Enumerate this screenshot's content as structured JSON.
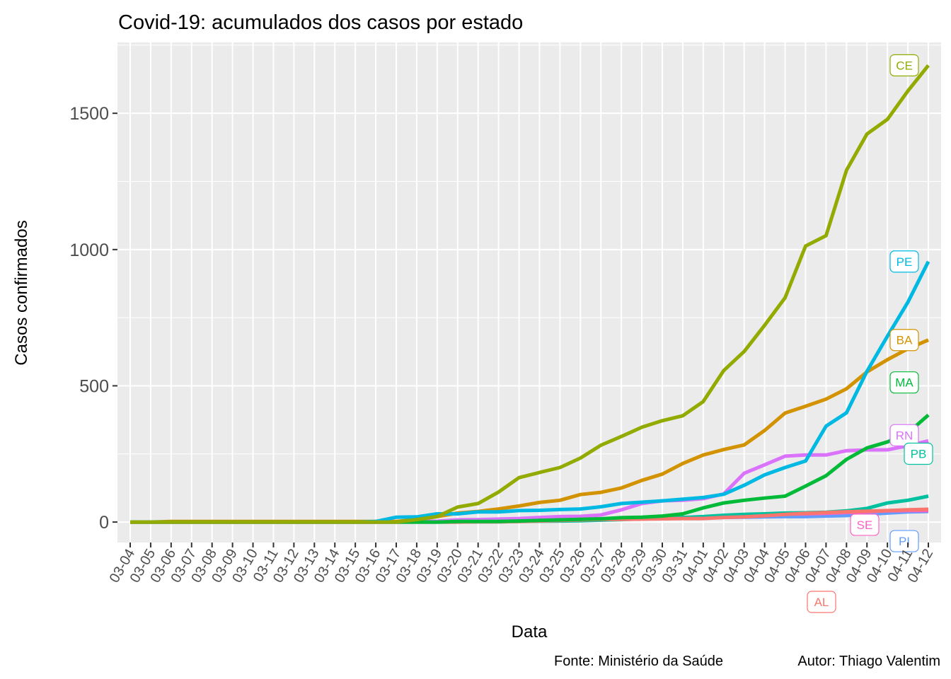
{
  "chart_data": {
    "type": "line",
    "title": "Covid-19: acumulados dos casos por estado",
    "xlabel": "Data",
    "ylabel": "Casos confirmados",
    "caption_source": "Fonte: Ministério da Saúde",
    "caption_author": "Autor: Thiago Valentim",
    "x": [
      "03-04",
      "03-05",
      "03-06",
      "03-07",
      "03-08",
      "03-09",
      "03-10",
      "03-11",
      "03-12",
      "03-13",
      "03-14",
      "03-15",
      "03-16",
      "03-17",
      "03-18",
      "03-19",
      "03-20",
      "03-21",
      "03-22",
      "03-23",
      "03-24",
      "03-25",
      "03-26",
      "03-27",
      "03-28",
      "03-29",
      "03-30",
      "03-31",
      "04-01",
      "04-02",
      "04-03",
      "04-04",
      "04-05",
      "04-06",
      "04-07",
      "04-08",
      "04-09",
      "04-10",
      "04-11",
      "04-12"
    ],
    "ylim": [
      -75,
      1760
    ],
    "yticks": [
      0,
      500,
      1000,
      1500
    ],
    "grid": true,
    "legend": "direct labels at line ends",
    "panel_bg": "#ebebeb",
    "series": [
      {
        "name": "CE",
        "color": "#93aa00",
        "values": [
          0,
          0,
          0,
          0,
          0,
          0,
          0,
          0,
          0,
          0,
          0,
          0,
          0,
          0,
          9,
          20,
          55,
          68,
          110,
          163,
          182,
          200,
          235,
          282,
          314,
          348,
          372,
          390,
          442,
          556,
          626,
          722,
          823,
          1013,
          1051,
          1291,
          1424,
          1478,
          1582,
          1676
        ]
      },
      {
        "name": "PE",
        "color": "#00b9e3",
        "values": [
          0,
          0,
          0,
          0,
          0,
          0,
          0,
          0,
          0,
          0,
          0,
          0,
          2,
          18,
          19,
          30,
          30,
          37,
          37,
          42,
          43,
          46,
          48,
          56,
          68,
          73,
          78,
          84,
          90,
          102,
          135,
          173,
          200,
          224,
          352,
          401,
          553,
          682,
          807,
          956
        ]
      },
      {
        "name": "BA",
        "color": "#d39200",
        "values": [
          0,
          0,
          2,
          2,
          2,
          2,
          2,
          2,
          2,
          2,
          2,
          2,
          2,
          2,
          10,
          20,
          33,
          39,
          48,
          59,
          72,
          80,
          101,
          109,
          125,
          153,
          176,
          215,
          246,
          266,
          283,
          336,
          400,
          425,
          451,
          489,
          551,
          596,
          636,
          668
        ]
      },
      {
        "name": "MA",
        "color": "#00ba38",
        "values": [
          0,
          0,
          0,
          0,
          0,
          0,
          0,
          0,
          0,
          0,
          0,
          0,
          0,
          0,
          0,
          0,
          2,
          2,
          2,
          4,
          6,
          8,
          10,
          12,
          16,
          18,
          22,
          30,
          52,
          70,
          80,
          88,
          95,
          132,
          170,
          230,
          272,
          294,
          327,
          393
        ]
      },
      {
        "name": "RN",
        "color": "#db72fb",
        "values": [
          0,
          0,
          0,
          0,
          0,
          0,
          0,
          0,
          0,
          0,
          0,
          0,
          0,
          0,
          1,
          3,
          8,
          9,
          11,
          13,
          17,
          20,
          21,
          26,
          45,
          68,
          78,
          80,
          86,
          103,
          179,
          210,
          242,
          246,
          246,
          262,
          265,
          265,
          280,
          298
        ]
      },
      {
        "name": "AL",
        "color": "#f8766d",
        "values": [
          0,
          0,
          0,
          0,
          0,
          0,
          0,
          0,
          0,
          0,
          0,
          0,
          0,
          0,
          0,
          0,
          0,
          1,
          1,
          2,
          4,
          6,
          8,
          10,
          10,
          11,
          12,
          13,
          13,
          17,
          19,
          23,
          28,
          32,
          35,
          38,
          40,
          42,
          45,
          47
        ]
      },
      {
        "name": "PB",
        "color": "#00c19f",
        "values": [
          0,
          0,
          0,
          0,
          0,
          0,
          0,
          0,
          0,
          0,
          0,
          0,
          0,
          0,
          0,
          0,
          0,
          1,
          1,
          2,
          3,
          4,
          5,
          7,
          9,
          12,
          15,
          17,
          20,
          25,
          28,
          30,
          33,
          34,
          36,
          41,
          50,
          70,
          80,
          95
        ]
      },
      {
        "name": "SE",
        "color": "#ff61c3",
        "values": [
          0,
          0,
          0,
          0,
          0,
          0,
          0,
          0,
          0,
          0,
          0,
          0,
          0,
          2,
          2,
          2,
          3,
          6,
          6,
          6,
          8,
          9,
          11,
          12,
          14,
          15,
          16,
          17,
          18,
          20,
          25,
          28,
          29,
          30,
          32,
          35,
          38,
          41,
          42,
          42
        ]
      },
      {
        "name": "PI",
        "color": "#619cff",
        "values": [
          0,
          0,
          0,
          0,
          0,
          0,
          0,
          0,
          0,
          0,
          0,
          0,
          0,
          0,
          1,
          2,
          3,
          4,
          5,
          6,
          7,
          8,
          9,
          10,
          11,
          12,
          14,
          15,
          16,
          17,
          18,
          19,
          20,
          20,
          22,
          24,
          28,
          33,
          37,
          39
        ]
      }
    ]
  }
}
